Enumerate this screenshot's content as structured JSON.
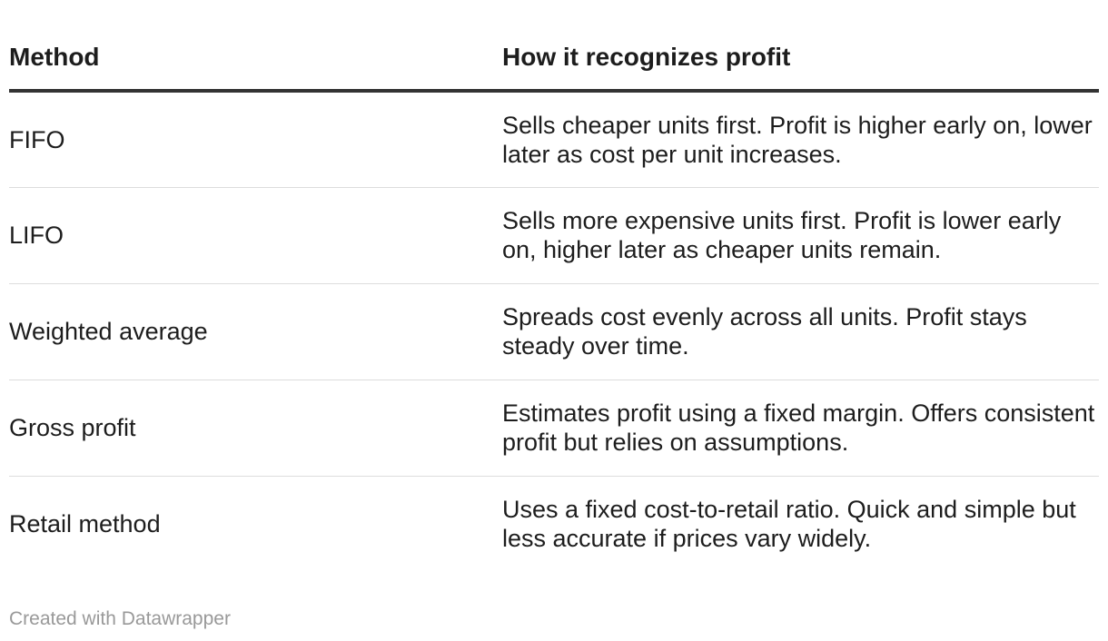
{
  "table": {
    "headers": {
      "method": "Method",
      "description": "How it recognizes profit"
    },
    "rows": [
      {
        "method": "FIFO",
        "description": "Sells cheaper units first. Profit is higher early on, lower later as cost per unit increases."
      },
      {
        "method": "LIFO",
        "description": "Sells more expensive units first. Profit is lower early on, higher later as cheaper units remain."
      },
      {
        "method": "Weighted average",
        "description": "Spreads cost evenly across all units. Profit stays steady over time."
      },
      {
        "method": "Gross profit",
        "description": "Estimates profit using a fixed margin. Offers consistent profit but relies on assumptions."
      },
      {
        "method": "Retail method",
        "description": "Uses a fixed cost-to-retail ratio. Quick and simple but less accurate if prices vary widely."
      }
    ]
  },
  "footer": {
    "credit": "Created with Datawrapper"
  },
  "colors": {
    "text": "#1d1d1d",
    "header_rule": "#333333",
    "row_rule": "#dddddd",
    "footer_text": "#999999"
  }
}
